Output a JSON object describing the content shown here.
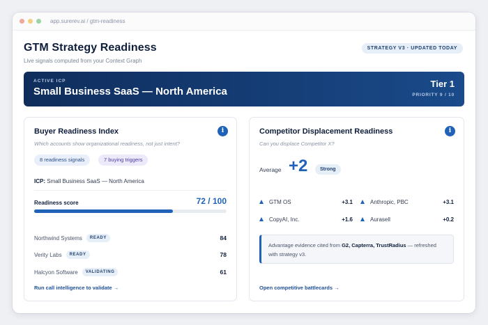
{
  "browser": {
    "url": "app.surerev.ai / gtm-readiness"
  },
  "header": {
    "title": "GTM Strategy Readiness",
    "subtitle": "Live signals computed from your Context Graph",
    "status": "STRATEGY V3 · UPDATED TODAY"
  },
  "icp": {
    "label": "ACTIVE ICP",
    "name": "Small Business SaaS — North America",
    "tier": "Tier 1",
    "priority": "PRIORITY 9 / 10"
  },
  "buyer": {
    "title": "Buyer Readiness Index",
    "subtitle": "Which accounts show organizational readiness, not just intent?",
    "chips": [
      "8 readiness signals",
      "7 buying triggers"
    ],
    "icp_label": "ICP:",
    "icp_value": "Small Business SaaS — North America",
    "score_label": "Readiness score",
    "score_text": "72 / 100",
    "score_fraction": 0.72,
    "accounts": [
      {
        "name": "Northwind Systems",
        "badge": "READY",
        "score": "84"
      },
      {
        "name": "Verity Labs",
        "badge": "READY",
        "score": "78"
      },
      {
        "name": "Halcyon Software",
        "badge": "VALIDATING",
        "score": "61"
      }
    ],
    "link": "Run call intelligence to validate →"
  },
  "competitor": {
    "title": "Competitor Displacement Readiness",
    "subtitle": "Can you displace Competitor X?",
    "avg_label": "Average",
    "avg_value": "+2",
    "avg_badge": "Strong",
    "competitors": [
      {
        "name": "GTM OS",
        "delta": "+3.1"
      },
      {
        "name": "Anthropic, PBC",
        "delta": "+3.1"
      },
      {
        "name": "CopyAI, Inc.",
        "delta": "+1.6"
      },
      {
        "name": "Aurasell",
        "delta": "+0.2"
      }
    ],
    "evidence_prefix": "Advantage evidence cited from ",
    "evidence_sources": "G2, Capterra, TrustRadius",
    "evidence_suffix": " — refreshed with strategy v3.",
    "link": "Open competitive battlecards →"
  },
  "colors": {
    "accent": "#1f62b8",
    "banner_start": "#0f2d5c",
    "banner_end": "#1a4a8a"
  }
}
